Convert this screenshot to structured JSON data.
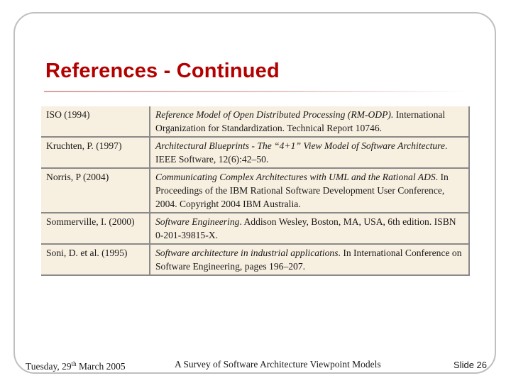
{
  "slide": {
    "title": "References - Continued"
  },
  "references": [
    {
      "author": "ISO (1994)",
      "title": "Reference Model of Open Distributed Processing (RM-ODP).",
      "detail": " International Organization for Standardization. Technical Report 10746."
    },
    {
      "author": "Kruchten, P. (1997)",
      "title": "Architectural Blueprints - The “4+1” View Model of Software Architecture",
      "detail": ". IEEE Software, 12(6):42–50."
    },
    {
      "author": "Norris, P (2004)",
      "title": "Communicating Complex Architectures with UML and the Rational ADS",
      "detail": ". In Proceedings of the IBM Rational Software Development User Conference, 2004. Copyright 2004 IBM Australia."
    },
    {
      "author": "Sommerville, I. (2000)",
      "title": "Software Engineering",
      "detail": ". Addison Wesley, Boston, MA, USA, 6th edition. ISBN 0-201-39815-X."
    },
    {
      "author": "Soni, D. et al. (1995)",
      "title": "Software architecture in industrial applications",
      "detail": ". In International Conference on Software Engineering, pages 196–207."
    }
  ],
  "footer": {
    "date_day": "Tuesday, 29",
    "date_sup": "th",
    "date_rest": " March 2005",
    "presentation_title": "A Survey of Software Architecture Viewpoint Models",
    "slide_number": "Slide 26"
  }
}
